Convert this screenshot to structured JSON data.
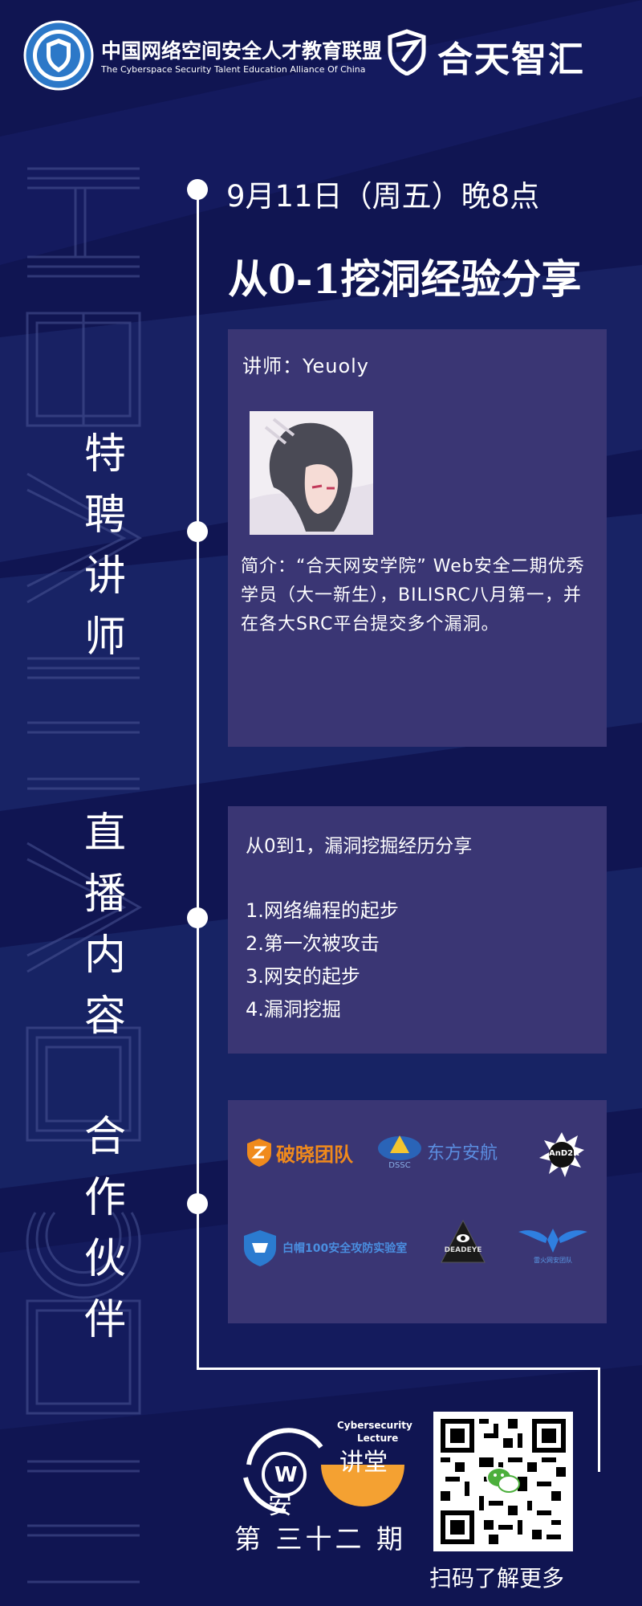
{
  "header": {
    "alliance_name_cn": "中国网络空间安全人才教育联盟",
    "alliance_name_en": "The Cyberspace Security Talent Education Alliance Of China",
    "brand_name": "合天智汇"
  },
  "event": {
    "datetime": "9月11日（周五）晚8点",
    "title": "从0-1挖洞经验分享"
  },
  "side_labels": {
    "speaker": [
      "特",
      "聘",
      "讲",
      "师"
    ],
    "content": [
      "直",
      "播",
      "内",
      "容"
    ],
    "partners": [
      "合",
      "作",
      "伙",
      "伴"
    ]
  },
  "speaker": {
    "name_line": "讲师：Yeuoly",
    "bio": "简介：“合天网安学院” Web安全二期优秀学员（大一新生），BILISRC八月第一，并在各大SRC平台提交多个漏洞。"
  },
  "content": {
    "intro": "从0到1，漏洞挖掘经历分享",
    "items": [
      "1.网络编程的起步",
      "2.第一次被攻击",
      "3.网安的起步",
      "4.漏洞挖掘"
    ]
  },
  "partners": {
    "pox": "破晓团队",
    "dfah_cn": "东方安航",
    "dfah_en": "DSSC",
    "andrz": "AnD2R",
    "baimao": "白帽100安全攻防实验室",
    "deadeye": "DEADEYE",
    "wings": "雷火网安团队"
  },
  "footer": {
    "lecture_en_1": "Cybersecurity",
    "lecture_en_2": "Lecture",
    "lecture_cn": "讲堂",
    "w_letter": "W",
    "an_char": "安",
    "issue": "第 三十二 期",
    "qr_caption": "扫码了解更多"
  },
  "colors": {
    "background": "#101552",
    "card": "#3a3674",
    "accent_orange": "#f4a132",
    "text": "#ffffff"
  }
}
